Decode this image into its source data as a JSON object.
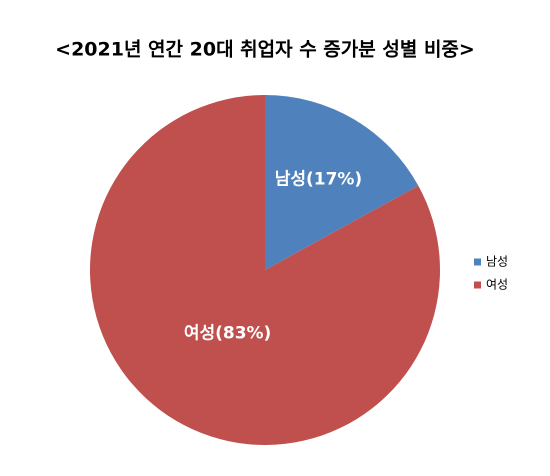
{
  "chart_data": {
    "type": "pie",
    "title": "<2021년 연간 20대 취업자 수 증가분 성별 비중>",
    "categories": [
      "남성",
      "여성"
    ],
    "values": [
      17,
      83
    ],
    "value_labels": [
      "남성(17%)",
      "여성(83%)"
    ],
    "colors": [
      "#4f81bd",
      "#c0504d"
    ],
    "legend": "right"
  }
}
